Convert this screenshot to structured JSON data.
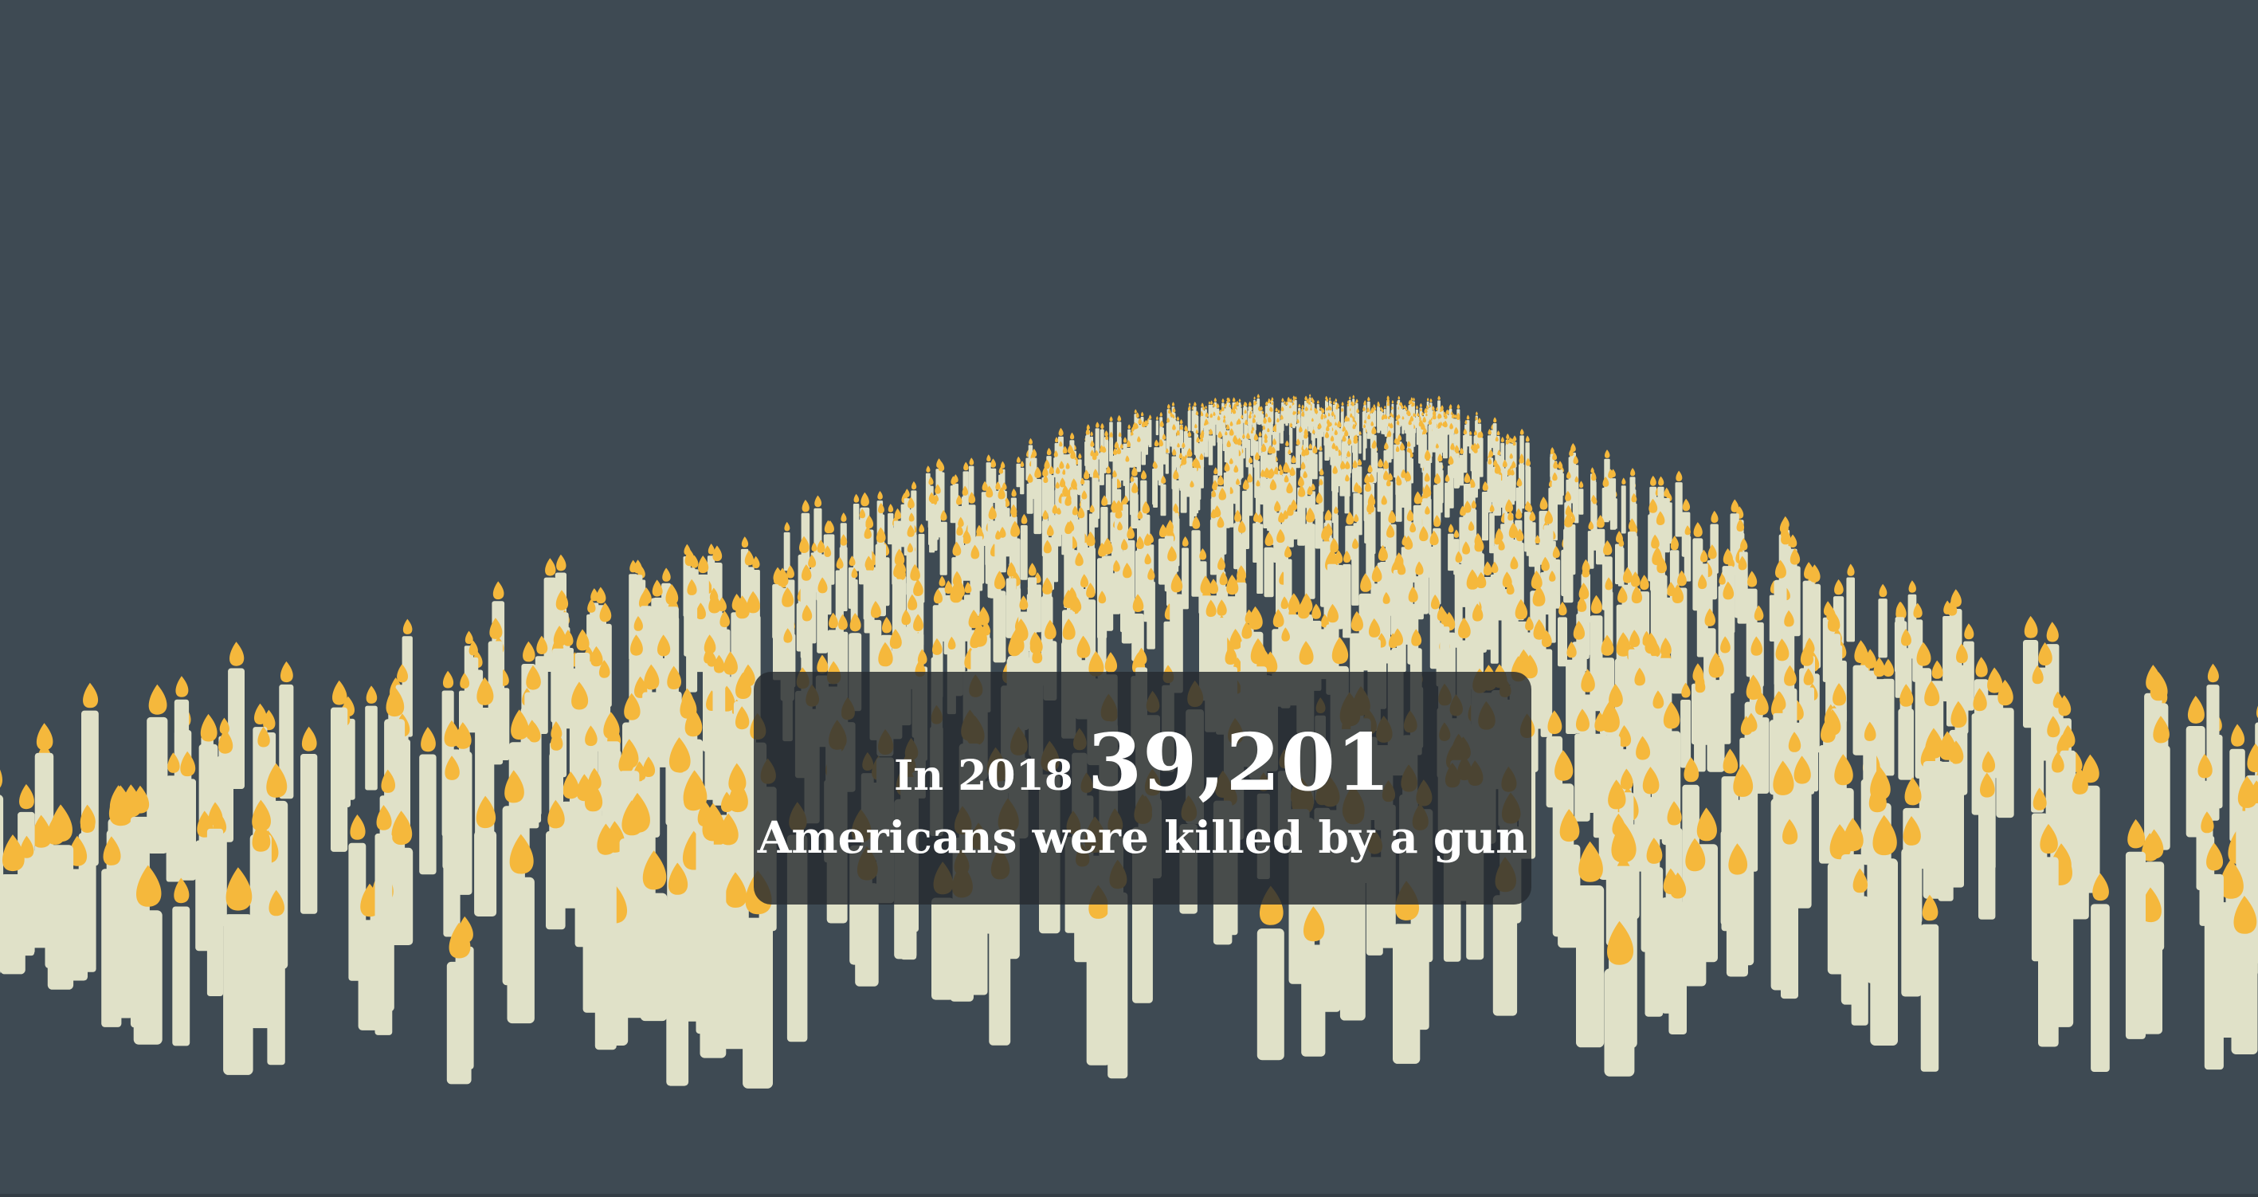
{
  "caption": {
    "prefix": "In 2018",
    "number": "39,201",
    "subtitle": "Americans were killed by a gun"
  },
  "colors": {
    "background": "#3e4a53",
    "candle_body": "#e0e1c8",
    "candle_flame": "#f5b83c",
    "caption_box": "#262b2f"
  }
}
